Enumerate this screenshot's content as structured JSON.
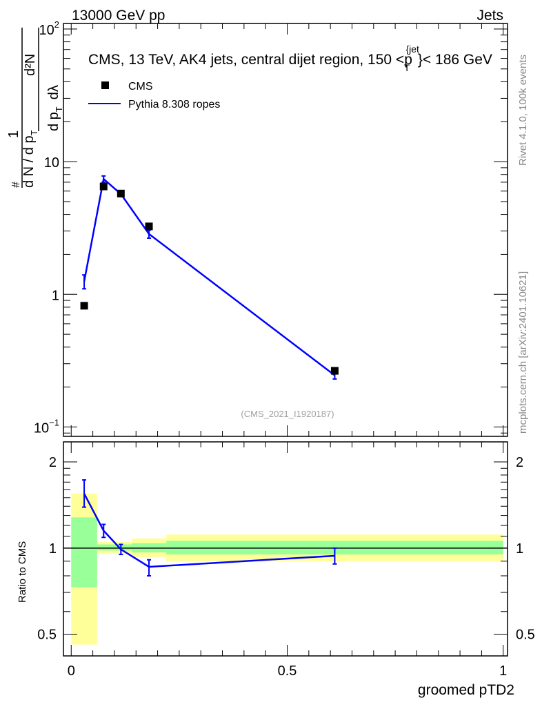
{
  "header": {
    "left": "13000 GeV pp",
    "right": "Jets"
  },
  "side_text": {
    "rivet": "Rivet 4.1.0,  100k events",
    "mcplots": "mcplots.cern.ch [arXiv:2401.10621]"
  },
  "chart_data": [
    {
      "type": "scatter",
      "title": "CMS, 13 TeV, AK4 jets, central dijet region, 150 <p_T^{jet}< 186 GeV",
      "title_parts": {
        "main": "CMS, 13 TeV, AK4 jets, central dijet region, 150 <p",
        "sub": "T",
        "sup": "{jet",
        "tail": "}< 186 GeV"
      },
      "ylabel": "1/(dN/dp_T) d²N/(dp_T dλ)",
      "ylabel_parts": {
        "num1": "1",
        "den1": "d N / d p",
        "num2": "d²N",
        "den2": "d p",
        "dl": "dλ",
        "T": "T",
        "hash": "#"
      },
      "yscale": "log",
      "ylim": [
        0.085,
        110
      ],
      "xlim": [
        -0.018,
        1.01
      ],
      "ytick_labels": [
        {
          "v": 100,
          "base": "10",
          "exp": "2"
        },
        {
          "v": 10,
          "base": "10",
          "exp": ""
        },
        {
          "v": 1,
          "base": "1",
          "exp": ""
        },
        {
          "v": 0.1,
          "base": "10",
          "exp": "−1"
        }
      ],
      "watermark": "(CMS_2021_I1920187)",
      "legend": [
        {
          "label": "CMS",
          "marker": "square",
          "color": "#000000"
        },
        {
          "label": "Pythia 8.308 ropes",
          "marker": "line",
          "color": "#0000ff"
        }
      ],
      "legend_position": "top-left",
      "bin_edges": [
        0,
        0.06,
        0.09,
        0.14,
        0.22,
        1.0
      ],
      "series": [
        {
          "name": "CMS",
          "x": [
            0.03,
            0.075,
            0.115,
            0.18,
            0.61
          ],
          "y": [
            0.82,
            6.5,
            5.75,
            3.25,
            0.265
          ],
          "color": "#000000"
        },
        {
          "name": "Pythia 8.308 ropes",
          "x": [
            0.03,
            0.075,
            0.115,
            0.18,
            0.61
          ],
          "y": [
            1.25,
            7.4,
            5.7,
            2.85,
            0.245
          ],
          "yerr_low": [
            1.1,
            7.0,
            5.45,
            2.65,
            0.23
          ],
          "yerr_high": [
            1.4,
            7.8,
            5.95,
            3.05,
            0.26
          ],
          "color": "#0000ff"
        }
      ]
    },
    {
      "type": "line",
      "ylabel": "Ratio to CMS",
      "xlabel": "groomed pTD2",
      "yscale": "log",
      "ylim": [
        0.42,
        2.35
      ],
      "xlim": [
        -0.018,
        1.01
      ],
      "ytick_labels": [
        {
          "v": 2,
          "label": "2"
        },
        {
          "v": 1,
          "label": "1"
        },
        {
          "v": 0.5,
          "label": "0.5"
        }
      ],
      "xtick_labels": [
        {
          "v": 0,
          "label": "0"
        },
        {
          "v": 0.5,
          "label": "0.5"
        },
        {
          "v": 1,
          "label": "1"
        }
      ],
      "bands": {
        "bin_edges": [
          0,
          0.06,
          0.09,
          0.14,
          0.22,
          1.0
        ],
        "yellow_low": [
          0.46,
          0.955,
          0.955,
          0.93,
          0.9
        ],
        "yellow_high": [
          1.55,
          1.05,
          1.05,
          1.08,
          1.115
        ],
        "green_low": [
          0.73,
          0.98,
          0.98,
          0.966,
          0.95
        ],
        "green_high": [
          1.28,
          1.03,
          1.03,
          1.04,
          1.06
        ],
        "yellow_color": "#ffff99",
        "green_color": "#99ff99"
      },
      "series": [
        {
          "name": "Pythia 8.308 ropes",
          "x": [
            0.03,
            0.075,
            0.115,
            0.18,
            0.61
          ],
          "y": [
            1.55,
            1.15,
            0.99,
            0.86,
            0.94
          ],
          "yerr_low": [
            1.39,
            1.09,
            0.95,
            0.8,
            0.88
          ],
          "yerr_high": [
            1.73,
            1.21,
            1.03,
            0.91,
            1.0
          ],
          "color": "#0000ff"
        }
      ]
    }
  ]
}
